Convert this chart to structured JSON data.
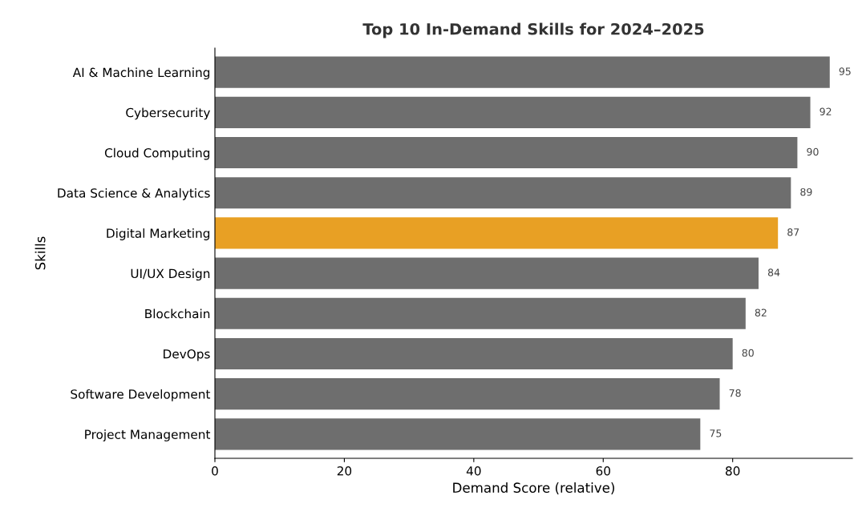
{
  "chart_data": {
    "type": "bar",
    "orientation": "horizontal",
    "title": "Top 10 In-Demand Skills for 2024–2025",
    "xlabel": "Demand Score (relative)",
    "ylabel": "Skills",
    "categories": [
      "AI & Machine Learning",
      "Cybersecurity",
      "Cloud Computing",
      "Data Science & Analytics",
      "Digital Marketing",
      "UI/UX Design",
      "Blockchain",
      "DevOps",
      "Software Development",
      "Project Management"
    ],
    "values": [
      95,
      92,
      90,
      89,
      87,
      84,
      82,
      80,
      78,
      75
    ],
    "colors": [
      "#6e6e6e",
      "#6e6e6e",
      "#6e6e6e",
      "#6e6e6e",
      "#e8a024",
      "#6e6e6e",
      "#6e6e6e",
      "#6e6e6e",
      "#6e6e6e",
      "#6e6e6e"
    ],
    "xlim": [
      0,
      98.5
    ],
    "xticks": [
      0,
      20,
      40,
      60,
      80
    ],
    "data_labels": true,
    "grid": false,
    "legend": false
  }
}
